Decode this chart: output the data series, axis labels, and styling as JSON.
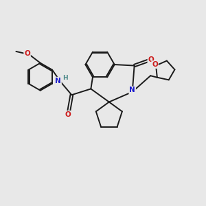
{
  "background_color": "#e8e8e8",
  "bond_color": "#1a1a1a",
  "atom_colors": {
    "N": "#1a1acc",
    "O": "#cc1a1a",
    "H": "#4a8888",
    "C": "#1a1a1a"
  },
  "figsize": [
    3.0,
    3.0
  ],
  "dpi": 100
}
